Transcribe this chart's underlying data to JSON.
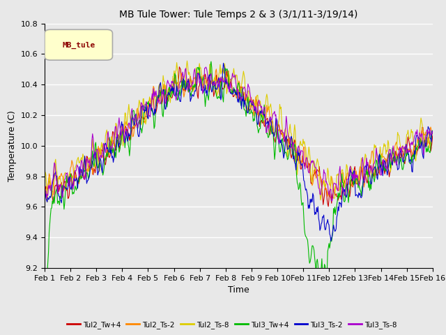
{
  "title": "MB Tule Tower: Tule Temps 2 & 3 (3/1/11-3/19/14)",
  "xlabel": "Time",
  "ylabel": "Temperature (C)",
  "ylim": [
    9.2,
    10.8
  ],
  "xtick_labels": [
    "Feb 1",
    "Feb 2",
    "Feb 3",
    "Feb 4",
    "Feb 5",
    "Feb 6",
    "Feb 7",
    "Feb 8",
    "Feb 9",
    "Feb 10",
    "Feb 11",
    "Feb 12",
    "Feb 13",
    "Feb 14",
    "Feb 15",
    "Feb 16"
  ],
  "series": [
    {
      "label": "Tul2_Tw+4",
      "color": "#cc0000"
    },
    {
      "label": "Tul2_Ts-2",
      "color": "#ff8800"
    },
    {
      "label": "Tul2_Ts-8",
      "color": "#ddcc00"
    },
    {
      "label": "Tul3_Tw+4",
      "color": "#00bb00"
    },
    {
      "label": "Tul3_Ts-2",
      "color": "#0000cc"
    },
    {
      "label": "Tul3_Ts-8",
      "color": "#aa00cc"
    }
  ],
  "legend_label": "MB_tule",
  "legend_bg": "#ffffcc",
  "legend_border": "#aaaaaa",
  "bg_color": "#e8e8e8",
  "n_points": 600,
  "seed": 42
}
